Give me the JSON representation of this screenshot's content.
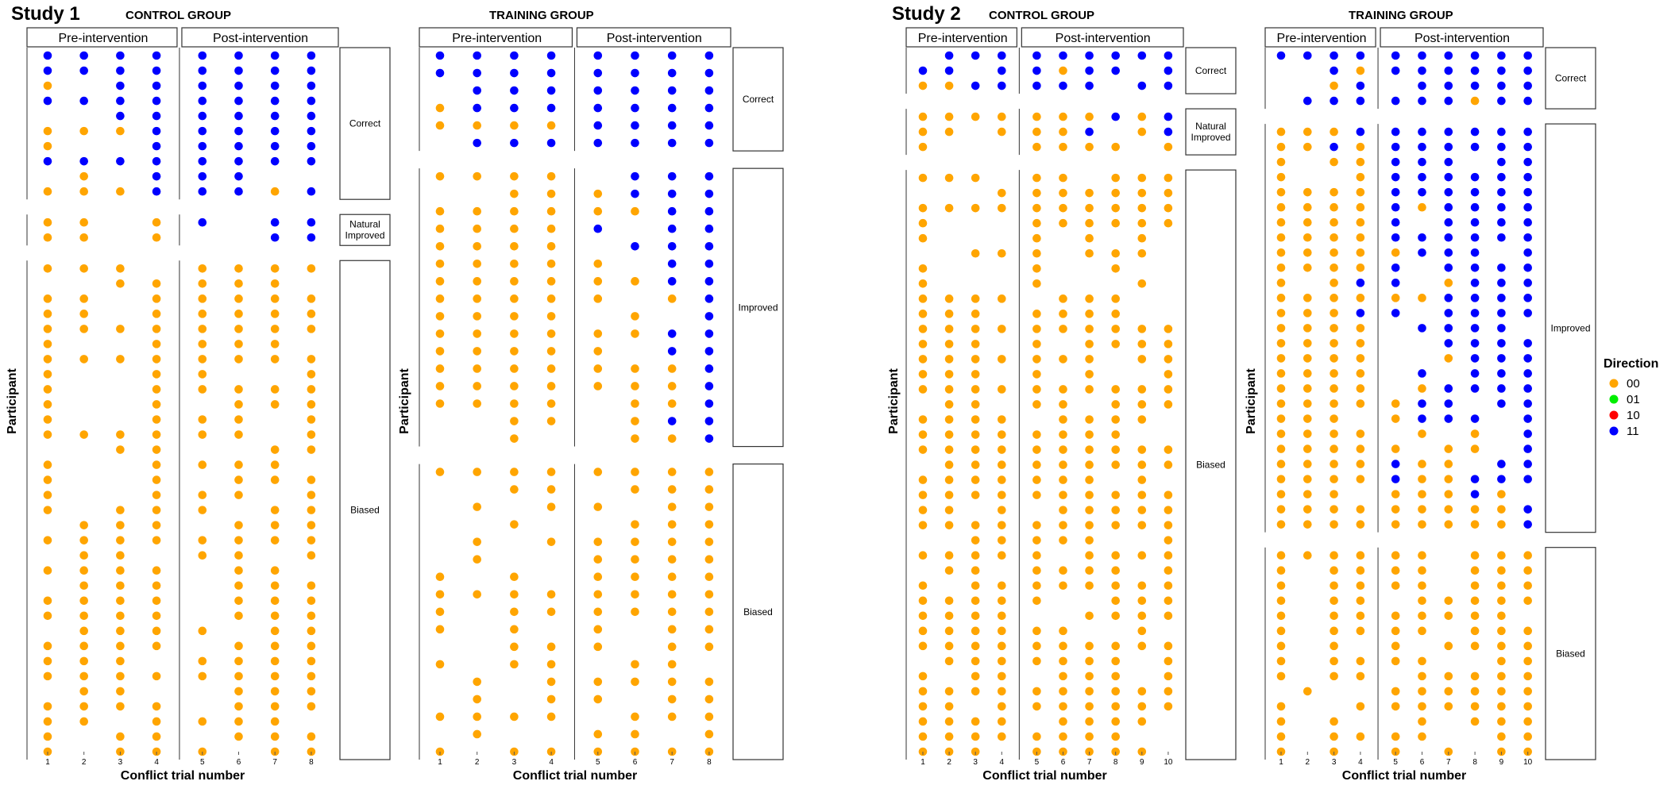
{
  "colors": {
    "00": "#FFA500",
    "01": "#00EE00",
    "10": "#FF0000",
    "11": "#0000FF"
  },
  "legend": {
    "title": "Direction",
    "items": [
      "00",
      "01",
      "10",
      "11"
    ]
  },
  "studies": [
    {
      "title": "Study 1"
    },
    {
      "title": "Study 2"
    }
  ],
  "chart_data": [
    {
      "type": "scatter",
      "study": "Study 1",
      "title": "CONTROL GROUP",
      "ylabel": "Participant",
      "xlabel": "Conflict trial number",
      "x_ticks": [
        "1",
        "2",
        "3",
        "4",
        "5",
        "6",
        "7",
        "8"
      ],
      "phases": [
        "Pre-intervention",
        "Post-intervention"
      ],
      "pre_trials": 4,
      "post_trials": 4,
      "categories": [
        "Correct",
        "Natural\nImproved",
        "Biased"
      ],
      "category_rows": [
        10,
        2,
        33
      ],
      "rows": [
        "11111111",
        "11111111",
        "0.111111",
        "11111111",
        "..111111",
        "00011111",
        "0..11111",
        "11111111",
        ".0.111..",
        "00011101",
        "00.01.11",
        "00.0..11",
        "000.0000",
        "..00000.",
        "00.00000",
        "00.00000",
        "00000000",
        "0..0000.",
        "00000000",
        "0..00..0",
        "0..00000",
        "0..0.000",
        "0..000.0",
        "000000.0",
        "..00..00",
        "0..0000.",
        "0..0.000",
        "0..000.0",
        "0.000.00",
        ".000.000",
        "00000000",
        ".00.00.0",
        "0000.00.",
        ".000.000",
        "0000.000",
        "0000.000",
        ".0000.00",
        "0000.000",
        "000.0000",
        "00000000",
        ".00..000",
        "0000.000",
        "00.0000.",
        "0.00.000",
        "0.000.00"
      ]
    },
    {
      "type": "scatter",
      "study": "Study 1",
      "title": "TRAINING GROUP",
      "ylabel": "Participant",
      "xlabel": "Conflict trial number",
      "x_ticks": [
        "1",
        "2",
        "3",
        "4",
        "5",
        "6",
        "7",
        "8"
      ],
      "phases": [
        "Pre-intervention",
        "Post-intervention"
      ],
      "pre_trials": 4,
      "post_trials": 4,
      "categories": [
        "Correct",
        "Improved",
        "Biased"
      ],
      "category_rows": [
        6,
        16,
        17
      ],
      "rows": [
        "11111111",
        "11111111",
        ".1111111",
        "01111111",
        "00001111",
        ".1111111",
        "0000.111",
        "..000111",
        "00000011",
        "00001.11",
        "0000.111",
        "00000.11",
        "00000011",
        "00000.01",
        "0000.0.1",
        "00000011",
        "00000.11",
        "00000001",
        "00000001",
        "0000.001",
        "..00.011",
        "..0..001",
        "00000000",
        "..00.000",
        ".0.00.00",
        "..0..000",
        ".0.00000",
        ".0..0000",
        "0.0.0000",
        "00000000",
        "0.000000",
        "0.0.0.00",
        "..000.00",
        "0.00.00.",
        ".0.00000",
        ".0.00.00",
        "0000.000",
        ".0..00.0",
        "0.000000"
      ]
    },
    {
      "type": "scatter",
      "study": "Study 2",
      "title": "CONTROL GROUP",
      "ylabel": "Participant",
      "xlabel": "Conflict trial number",
      "x_ticks": [
        "1",
        "2",
        "3",
        "4",
        "5",
        "6",
        "7",
        "8",
        "9",
        "10"
      ],
      "phases": [
        "Pre-intervention",
        "Post-intervention"
      ],
      "pre_trials": 4,
      "post_trials": 6,
      "categories": [
        "Correct",
        "Natural\nImproved",
        "Biased"
      ],
      "category_rows": [
        3,
        3,
        39
      ],
      "rows": [
        ".111111111",
        "11.11011.1",
        "0011111.11",
        "0000000101",
        "00.0001.01",
        "0...0000.0",
        "000.00.000",
        "...0000000",
        "0000000000",
        "0...000000",
        "0...0.0.0.",
        "..000.000.",
        "0...0..0..",
        "0...0...0.",
        "0000.000..",
        "000.0000..",
        "0000000000",
        "000.0.0000",
        "0000000.00",
        "000.0.0..0",
        "0000000000",
        ".00.00.000",
        "0000.0000.",
        "00000000..",
        "0000000000",
        ".000000000",
        "0000000.0.",
        "0000000000",
        "00.0.00000",
        "0000000000",
        "..00000..0",
        "00000.0000",
        ".00.0000.0",
        "0.00000000",
        "00000..000",
        "0000..0000",
        "000000..0.",
        "0000000000",
        ".0000000.0",
        "0.00.000.0",
        "0000000000",
        "00.0000000",
        "0000.0000.",
        "00000000..",
        "000.00000."
      ]
    },
    {
      "type": "scatter",
      "study": "Study 2",
      "title": "TRAINING GROUP",
      "ylabel": "Participant",
      "xlabel": "Conflict trial number",
      "x_ticks": [
        "1",
        "2",
        "3",
        "4",
        "5",
        "6",
        "7",
        "8",
        "9",
        "10"
      ],
      "phases": [
        "Pre-intervention",
        "Post-intervention"
      ],
      "pre_trials": 4,
      "post_trials": 6,
      "categories": [
        "Correct",
        "Improved",
        "Biased"
      ],
      "category_rows": [
        4,
        27,
        14
      ],
      "rows": [
        "1111111111",
        "..10111111",
        "..01.11111",
        ".111111011",
        "0001111111",
        "0010111111",
        "0.00111.11",
        "0..0111111",
        "0000111111",
        "0000101111",
        "00001.1111",
        "0000111111",
        "00000111.1",
        "00001.1111",
        "0.011.0111",
        "0000001111",
        "00011.1111",
        "0000.1111.",
        "0000..1111",
        "0000..0111",
        "0000.1.111",
        "0000.01111",
        "0000011.11",
        "000.0111.1",
        "0000.0.0.1",
        "00000.00.1",
        "0000100.11",
        "0000100111",
        "000.00010.",
        "0000000001",
        "0000000001",
        "000000.000",
        "0.0000.000",
        "0.0000.000",
        "0.00.00000",
        "0.0000000.",
        "0.0000.000",
        "0.0.0.0000",
        "0.0000..00",
        "0.00.00000",
        ".0..000000",
        "0..0000000",
        "0.0..0.000",
        "0.0000..00",
        "0.0.0.0.00"
      ]
    }
  ]
}
